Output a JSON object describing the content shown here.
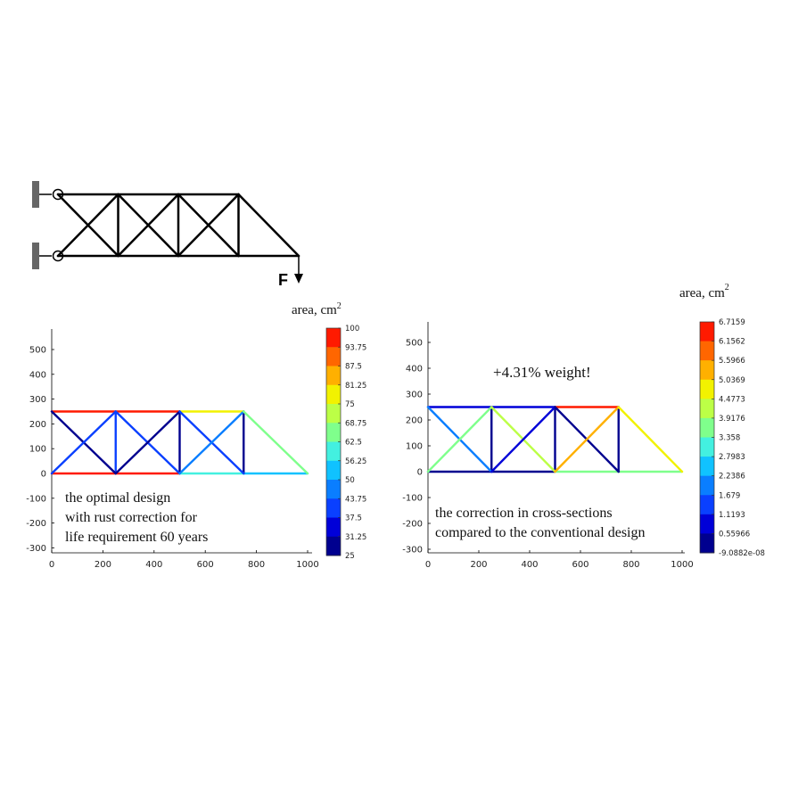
{
  "schematic": {
    "force_label": "F"
  },
  "chart_data": [
    {
      "type": "truss",
      "xlim": [
        0,
        1000
      ],
      "ylim": [
        -300,
        600
      ],
      "x_ticks": [
        0,
        200,
        400,
        600,
        800,
        1000
      ],
      "y_ticks": [
        -300,
        -200,
        -100,
        0,
        100,
        200,
        300,
        400,
        500
      ],
      "grid": false,
      "colorbar": {
        "title": "area, cm",
        "title_sup": "2",
        "ticks": [
          "100",
          "93.75",
          "87.5",
          "81.25",
          "75",
          "68.75",
          "62.5",
          "56.25",
          "50",
          "43.75",
          "37.5",
          "31.25",
          "25"
        ],
        "min": 25,
        "max": 100
      },
      "annotations": [
        "the optimal design",
        "with rust correction for",
        "life requirement 60 years"
      ],
      "members": [
        {
          "x1": 0,
          "y1": 250,
          "x2": 250,
          "y2": 250,
          "value": 100
        },
        {
          "x1": 250,
          "y1": 250,
          "x2": 500,
          "y2": 250,
          "value": 100
        },
        {
          "x1": 500,
          "y1": 250,
          "x2": 750,
          "y2": 250,
          "value": 78
        },
        {
          "x1": 0,
          "y1": 0,
          "x2": 250,
          "y2": 0,
          "value": 100
        },
        {
          "x1": 250,
          "y1": 0,
          "x2": 500,
          "y2": 0,
          "value": 100
        },
        {
          "x1": 500,
          "y1": 0,
          "x2": 750,
          "y2": 0,
          "value": 62
        },
        {
          "x1": 750,
          "y1": 0,
          "x2": 1000,
          "y2": 0,
          "value": 52
        },
        {
          "x1": 250,
          "y1": 0,
          "x2": 250,
          "y2": 250,
          "value": 42
        },
        {
          "x1": 500,
          "y1": 0,
          "x2": 500,
          "y2": 250,
          "value": 30
        },
        {
          "x1": 750,
          "y1": 0,
          "x2": 750,
          "y2": 250,
          "value": 30
        },
        {
          "x1": 0,
          "y1": 250,
          "x2": 250,
          "y2": 0,
          "value": 30
        },
        {
          "x1": 0,
          "y1": 0,
          "x2": 250,
          "y2": 250,
          "value": 42
        },
        {
          "x1": 250,
          "y1": 250,
          "x2": 500,
          "y2": 0,
          "value": 42
        },
        {
          "x1": 250,
          "y1": 0,
          "x2": 500,
          "y2": 250,
          "value": 30
        },
        {
          "x1": 500,
          "y1": 250,
          "x2": 750,
          "y2": 0,
          "value": 42
        },
        {
          "x1": 500,
          "y1": 0,
          "x2": 750,
          "y2": 250,
          "value": 48
        },
        {
          "x1": 750,
          "y1": 250,
          "x2": 1000,
          "y2": 0,
          "value": 65
        }
      ]
    },
    {
      "type": "truss",
      "xlim": [
        0,
        1000
      ],
      "ylim": [
        -300,
        600
      ],
      "x_ticks": [
        0,
        200,
        400,
        600,
        800,
        1000
      ],
      "y_ticks": [
        -300,
        -200,
        -100,
        0,
        100,
        200,
        300,
        400,
        500
      ],
      "grid": false,
      "colorbar": {
        "title": "area, cm",
        "title_sup": "2",
        "ticks": [
          "6.7159",
          "6.1562",
          "5.5966",
          "5.0369",
          "4.4773",
          "3.9176",
          "3.358",
          "2.7983",
          "2.2386",
          "1.679",
          "1.1193",
          "0.55966",
          "-9.0882e-08"
        ],
        "min": 0,
        "max": 6.7159
      },
      "annotations": [
        "+4.31% weight!",
        "the correction in cross-sections",
        "compared to the conventional design"
      ],
      "members": [
        {
          "x1": 0,
          "y1": 250,
          "x2": 250,
          "y2": 250,
          "value": 0.6
        },
        {
          "x1": 250,
          "y1": 250,
          "x2": 500,
          "y2": 250,
          "value": 0.6
        },
        {
          "x1": 500,
          "y1": 250,
          "x2": 750,
          "y2": 250,
          "value": 6.6
        },
        {
          "x1": 0,
          "y1": 0,
          "x2": 250,
          "y2": 0,
          "value": 0.2
        },
        {
          "x1": 250,
          "y1": 0,
          "x2": 500,
          "y2": 0,
          "value": 0.2
        },
        {
          "x1": 500,
          "y1": 0,
          "x2": 750,
          "y2": 0,
          "value": 3.4
        },
        {
          "x1": 750,
          "y1": 0,
          "x2": 1000,
          "y2": 0,
          "value": 3.9
        },
        {
          "x1": 250,
          "y1": 0,
          "x2": 250,
          "y2": 250,
          "value": 0.2
        },
        {
          "x1": 500,
          "y1": 0,
          "x2": 500,
          "y2": 250,
          "value": 0.2
        },
        {
          "x1": 750,
          "y1": 0,
          "x2": 750,
          "y2": 250,
          "value": 0.2
        },
        {
          "x1": 0,
          "y1": 250,
          "x2": 250,
          "y2": 0,
          "value": 1.9
        },
        {
          "x1": 0,
          "y1": 0,
          "x2": 250,
          "y2": 250,
          "value": 3.9
        },
        {
          "x1": 250,
          "y1": 250,
          "x2": 500,
          "y2": 0,
          "value": 4.2
        },
        {
          "x1": 250,
          "y1": 0,
          "x2": 500,
          "y2": 250,
          "value": 0.6
        },
        {
          "x1": 500,
          "y1": 250,
          "x2": 750,
          "y2": 0,
          "value": 0.4
        },
        {
          "x1": 500,
          "y1": 0,
          "x2": 750,
          "y2": 250,
          "value": 5.2
        },
        {
          "x1": 750,
          "y1": 250,
          "x2": 1000,
          "y2": 0,
          "value": 4.8
        }
      ]
    }
  ]
}
